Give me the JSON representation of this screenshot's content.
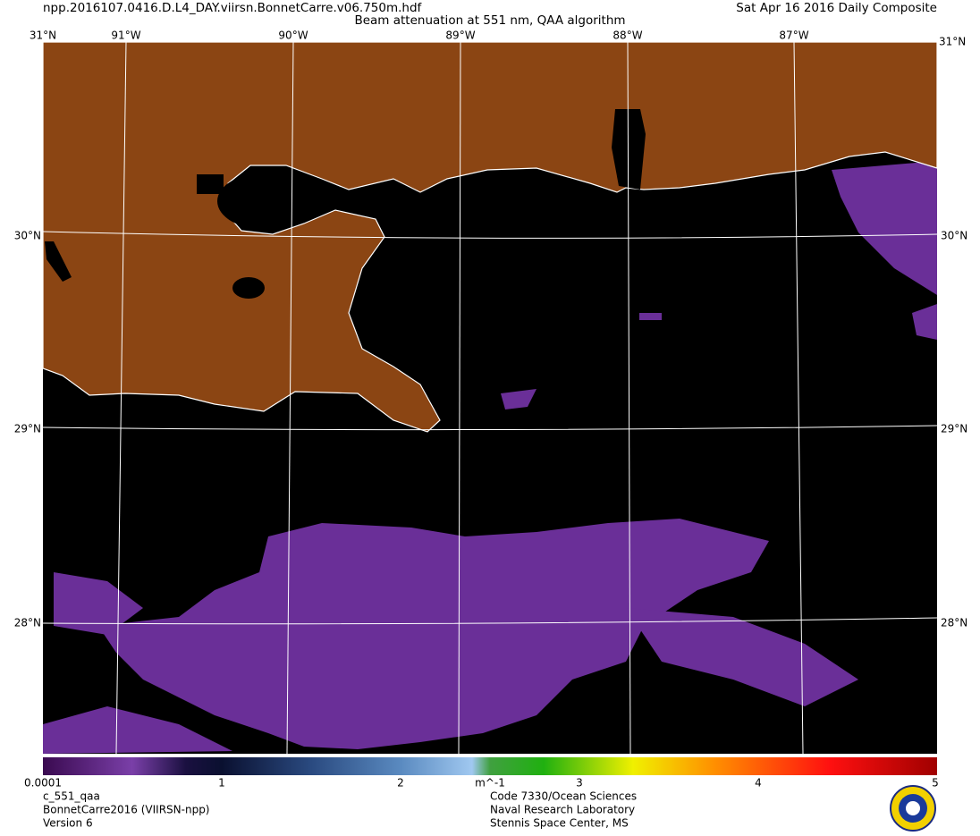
{
  "header": {
    "filename": "npp.2016107.0416.D.L4_DAY.viirsn.BonnetCarre.v06.750m.hdf",
    "title": "Beam attenuation at 551 nm, QAA algorithm",
    "date": "Sat Apr 16 2016 Daily Composite"
  },
  "map": {
    "longitude_labels": [
      "91°W",
      "90°W",
      "89°W",
      "88°W",
      "87°W"
    ],
    "latitude_labels": [
      "31°N",
      "30°N",
      "29°N",
      "28°N"
    ]
  },
  "colorbar": {
    "tick_labels": [
      "0.0001",
      "1",
      "2",
      "3",
      "4",
      "5"
    ],
    "unit": "m^-1"
  },
  "footer": {
    "left": [
      "c_551_qaa",
      "BonnetCarre2016 (VIIRSN-npp)",
      "Version 6"
    ],
    "center": [
      "Code 7330/Ocean Sciences",
      "Naval Research Laboratory",
      "Stennis Space Center, MS"
    ]
  }
}
